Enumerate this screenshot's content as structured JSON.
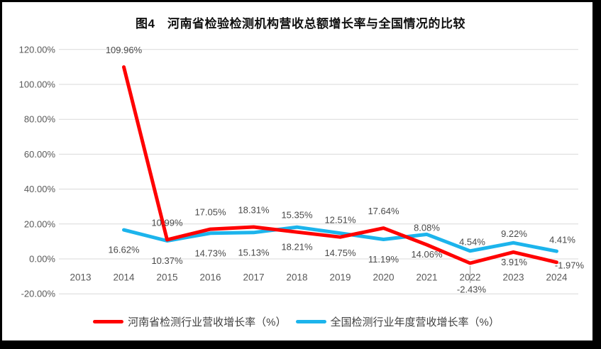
{
  "title": "图4　河南省检验检测机构营收总额增长率与全国情况的比较",
  "colors": {
    "series_henan": "#FF0000",
    "series_national": "#1CB4EC",
    "grid": "#D9D9D9",
    "axis_text": "#595959",
    "label_text": "#4A4A4A",
    "leader_line": "#A6A6A6",
    "frame": "#000000",
    "background": "#FFFFFF"
  },
  "chart_data": {
    "type": "line",
    "title": "图4　河南省检验检测机构营收总额增长率与全国情况的比较",
    "categories": [
      "2013",
      "2014",
      "2015",
      "2016",
      "2017",
      "2018",
      "2019",
      "2020",
      "2021",
      "2022",
      "2023",
      "2024"
    ],
    "series": [
      {
        "name": "河南省检测行业营收增长率（%）",
        "color": "#FF0000",
        "values": [
          null,
          109.96,
          10.99,
          17.05,
          18.31,
          15.35,
          12.51,
          17.64,
          8.08,
          -2.43,
          3.91,
          -1.97
        ]
      },
      {
        "name": "全国检测行业年度营收增长率（%）",
        "color": "#1CB4EC",
        "values": [
          null,
          16.62,
          10.37,
          14.73,
          15.13,
          18.21,
          14.75,
          11.19,
          14.06,
          4.54,
          9.22,
          4.41
        ]
      }
    ],
    "ytick_labels": [
      "120.00%",
      "100.00%",
      "80.00%",
      "60.00%",
      "40.00%",
      "20.00%",
      "0.00%",
      "-20.00%"
    ],
    "ylim": [
      -20,
      120
    ],
    "xlabel": "",
    "ylabel": "",
    "grid": true,
    "legend_position": "bottom",
    "data_labels_format": "0.00%"
  },
  "legend": {
    "item1": "河南省检测行业营收增长率（%）",
    "item2": "全国检测行业年度营收增长率（%）"
  }
}
